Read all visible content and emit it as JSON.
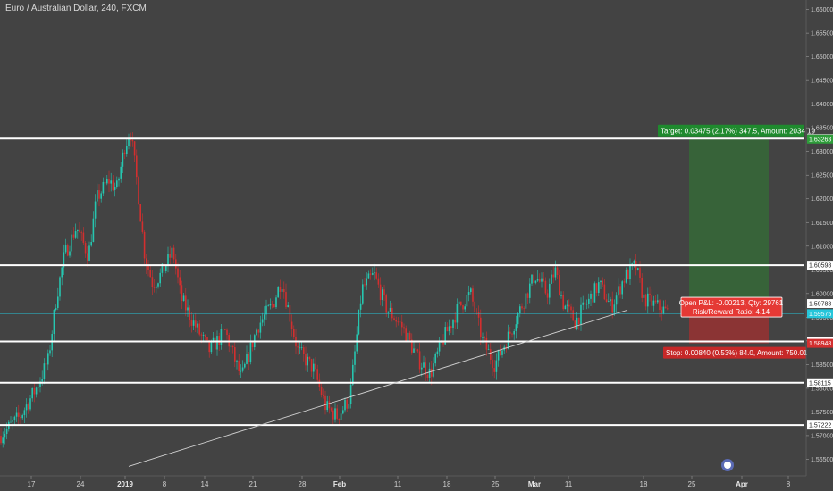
{
  "header": {
    "title": "Euro / Australian Dollar, 240, FXCM"
  },
  "colors": {
    "background": "#434343",
    "up_candle": "#26c6b0",
    "down_candle": "#d32f2f",
    "level_line": "#ffffff",
    "target_zone": "#2e7d32",
    "stop_zone": "#c62828",
    "price_line": "#26c6da"
  },
  "chart_data": {
    "type": "candlestick",
    "symbol": "Euro / Australian Dollar",
    "interval": "240",
    "source": "FXCM",
    "ylim": [
      1.5615,
      1.662
    ],
    "y_ticks": [
      "1.66000",
      "1.65500",
      "1.65000",
      "1.64500",
      "1.64000",
      "1.63500",
      "1.63000",
      "1.62500",
      "1.62000",
      "1.61500",
      "1.61000",
      "1.60500",
      "1.60000",
      "1.59500",
      "1.59000",
      "1.58500",
      "1.58000",
      "1.57500",
      "1.57000",
      "1.56500"
    ],
    "x_ticks": [
      {
        "label": "17",
        "bold": false
      },
      {
        "label": "24",
        "bold": false
      },
      {
        "label": "2019",
        "bold": true
      },
      {
        "label": "8",
        "bold": false
      },
      {
        "label": "14",
        "bold": false
      },
      {
        "label": "21",
        "bold": false
      },
      {
        "label": "28",
        "bold": false
      },
      {
        "label": "Feb",
        "bold": true
      },
      {
        "label": "11",
        "bold": false
      },
      {
        "label": "18",
        "bold": false
      },
      {
        "label": "25",
        "bold": false
      },
      {
        "label": "Mar",
        "bold": true
      },
      {
        "label": "11",
        "bold": false
      },
      {
        "label": "18",
        "bold": false
      },
      {
        "label": "25",
        "bold": false
      },
      {
        "label": "Apr",
        "bold": true
      },
      {
        "label": "8",
        "bold": false
      }
    ],
    "horizontal_levels": [
      1.63272,
      1.60598,
      1.58987,
      1.58115,
      1.57222
    ],
    "level_labels": [
      "1.63272",
      "1.60598",
      "1.58987",
      "1.58115",
      "1.57222"
    ],
    "current_price": {
      "value": 1.59575,
      "label": "1.59575"
    },
    "entry_price": {
      "value": 1.59788,
      "label": "1.59788"
    },
    "target_price": {
      "value": 1.63263,
      "label": "1.63263"
    },
    "stop_price": {
      "value": 1.58948,
      "label": "1.58948"
    },
    "trendline": [
      [
        0.16,
        1.5635
      ],
      [
        0.78,
        1.59652
      ]
    ],
    "position": {
      "target_label": "Target: 0.03475 (2.17%) 347.5, Amount: 2034.19",
      "stop_label": "Stop: 0.00840 (0.53%) 84.0, Amount: 750.01",
      "pnl_label": "Open P&L: -0.00213, Qty: 29761",
      "rr_label": "Risk/Reward Ratio: 4.14"
    },
    "keypoints": [
      [
        0.0,
        1.57
      ],
      [
        0.025,
        1.574
      ],
      [
        0.045,
        1.58
      ],
      [
        0.06,
        1.586
      ],
      [
        0.07,
        1.599
      ],
      [
        0.08,
        1.608
      ],
      [
        0.095,
        1.614
      ],
      [
        0.11,
        1.608
      ],
      [
        0.12,
        1.62
      ],
      [
        0.135,
        1.624
      ],
      [
        0.145,
        1.622
      ],
      [
        0.155,
        1.631
      ],
      [
        0.162,
        1.6345
      ],
      [
        0.17,
        1.624
      ],
      [
        0.18,
        1.608
      ],
      [
        0.19,
        1.602
      ],
      [
        0.2,
        1.604
      ],
      [
        0.215,
        1.609
      ],
      [
        0.225,
        1.599
      ],
      [
        0.24,
        1.594
      ],
      [
        0.26,
        1.588
      ],
      [
        0.28,
        1.592
      ],
      [
        0.3,
        1.582
      ],
      [
        0.32,
        1.593
      ],
      [
        0.34,
        1.598
      ],
      [
        0.35,
        1.603
      ],
      [
        0.37,
        1.588
      ],
      [
        0.39,
        1.584
      ],
      [
        0.405,
        1.576
      ],
      [
        0.42,
        1.574
      ],
      [
        0.435,
        1.578
      ],
      [
        0.45,
        1.601
      ],
      [
        0.465,
        1.604
      ],
      [
        0.48,
        1.597
      ],
      [
        0.5,
        1.593
      ],
      [
        0.52,
        1.586
      ],
      [
        0.535,
        1.583
      ],
      [
        0.55,
        1.59
      ],
      [
        0.57,
        1.597
      ],
      [
        0.585,
        1.6
      ],
      [
        0.6,
        1.59
      ],
      [
        0.615,
        1.585
      ],
      [
        0.635,
        1.592
      ],
      [
        0.65,
        1.598
      ],
      [
        0.665,
        1.604
      ],
      [
        0.68,
        1.6
      ],
      [
        0.69,
        1.605
      ],
      [
        0.7,
        1.598
      ],
      [
        0.715,
        1.594
      ],
      [
        0.73,
        1.598
      ],
      [
        0.745,
        1.602
      ],
      [
        0.76,
        1.597
      ],
      [
        0.775,
        1.603
      ],
      [
        0.79,
        1.606
      ],
      [
        0.8,
        1.599
      ],
      [
        0.815,
        1.5975
      ],
      [
        0.83,
        1.596
      ]
    ]
  }
}
